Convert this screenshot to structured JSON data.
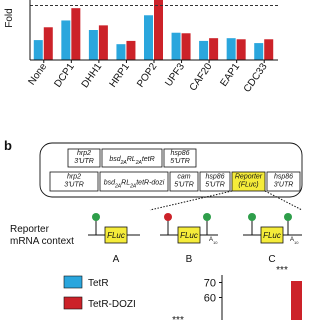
{
  "chart_data": [
    {
      "type": "bar",
      "y_label": "Fold",
      "categories": [
        "None",
        "DCP1",
        "DHH1",
        "HRP1",
        "POP2",
        "UPF3",
        "CAF20",
        "EAP1",
        "CDC33"
      ],
      "series": [
        {
          "name": "TetR",
          "color": "#2aa6dd",
          "values": [
            0.73,
            1.45,
            1.1,
            0.58,
            1.64,
            1.0,
            0.7,
            0.8,
            0.62
          ]
        },
        {
          "name": "TetR-DOZI",
          "color": "#cc2229",
          "values": [
            1.2,
            1.9,
            1.27,
            0.7,
            2.2,
            0.98,
            0.8,
            0.76,
            0.76
          ]
        }
      ],
      "ylim": [
        0,
        2.2
      ],
      "reference_line": 2
    },
    {
      "type": "bar",
      "categories": [
        "A",
        "B",
        "C"
      ],
      "series": [
        {
          "name": "TetR",
          "color": "#2aa6dd",
          "values": [
            null,
            null,
            null
          ]
        },
        {
          "name": "TetR-DOZI",
          "color": "#cc2229",
          "values": [
            null,
            null,
            71
          ]
        }
      ],
      "ylim": [
        45,
        75
      ],
      "yticks": [
        60,
        70
      ],
      "annotations": [
        "***",
        "***"
      ]
    }
  ],
  "diagram": {
    "panel": "b",
    "row1": [
      [
        "hrp2",
        "3'UTR"
      ],
      [
        "bsd",
        "2A",
        "RL",
        "2A",
        "tetR"
      ],
      [
        "hsp86",
        "5'UTR"
      ]
    ],
    "row2": [
      [
        "hrp2",
        "3'UTR"
      ],
      [
        "bsd",
        "2A",
        "RL",
        "2A",
        "tetR-dozi"
      ],
      [
        "cam",
        "5'UTR"
      ],
      [
        "hsp86",
        "5'UTR"
      ],
      [
        "Reporter",
        "(FLuc)"
      ],
      [
        "hsp86",
        "3'UTR"
      ]
    ],
    "context_label": [
      "Reporter",
      "mRNA context"
    ],
    "gene": "FLuc",
    "tail": "A",
    "tail_sub": "10"
  }
}
